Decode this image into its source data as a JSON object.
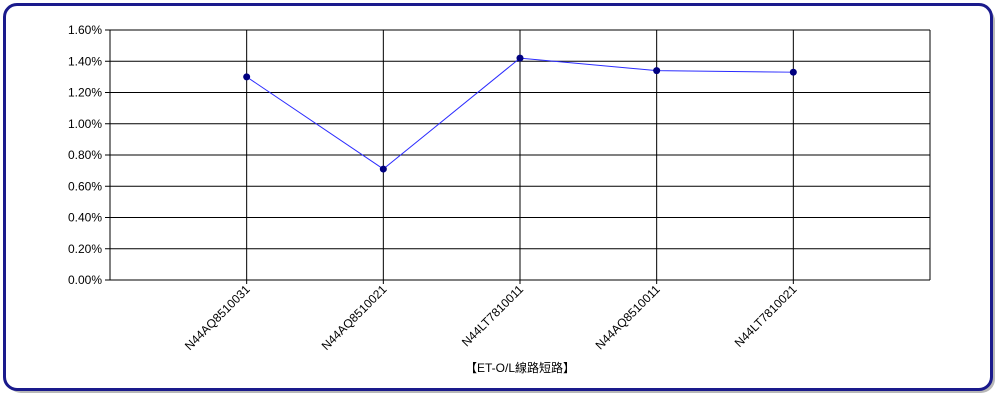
{
  "chart_data": {
    "type": "line",
    "categories": [
      "N44AQ8510031",
      "N44AQ8510021",
      "N44LT7810011",
      "N44AQ8510011",
      "N44LT7810021"
    ],
    "series": [
      {
        "values": [
          1.3,
          0.71,
          1.42,
          1.34,
          1.33
        ],
        "color": "#2b2bff",
        "marker_color": "#000080"
      }
    ],
    "y_ticks": [
      "0.00%",
      "0.20%",
      "0.40%",
      "0.60%",
      "0.80%",
      "1.00%",
      "1.20%",
      "1.40%",
      "1.60%"
    ],
    "ylim": [
      0,
      1.6
    ],
    "ystep": 0.2,
    "y_unit": "%",
    "xlabel": "【ET-O/L線路短路】",
    "grid": true
  }
}
